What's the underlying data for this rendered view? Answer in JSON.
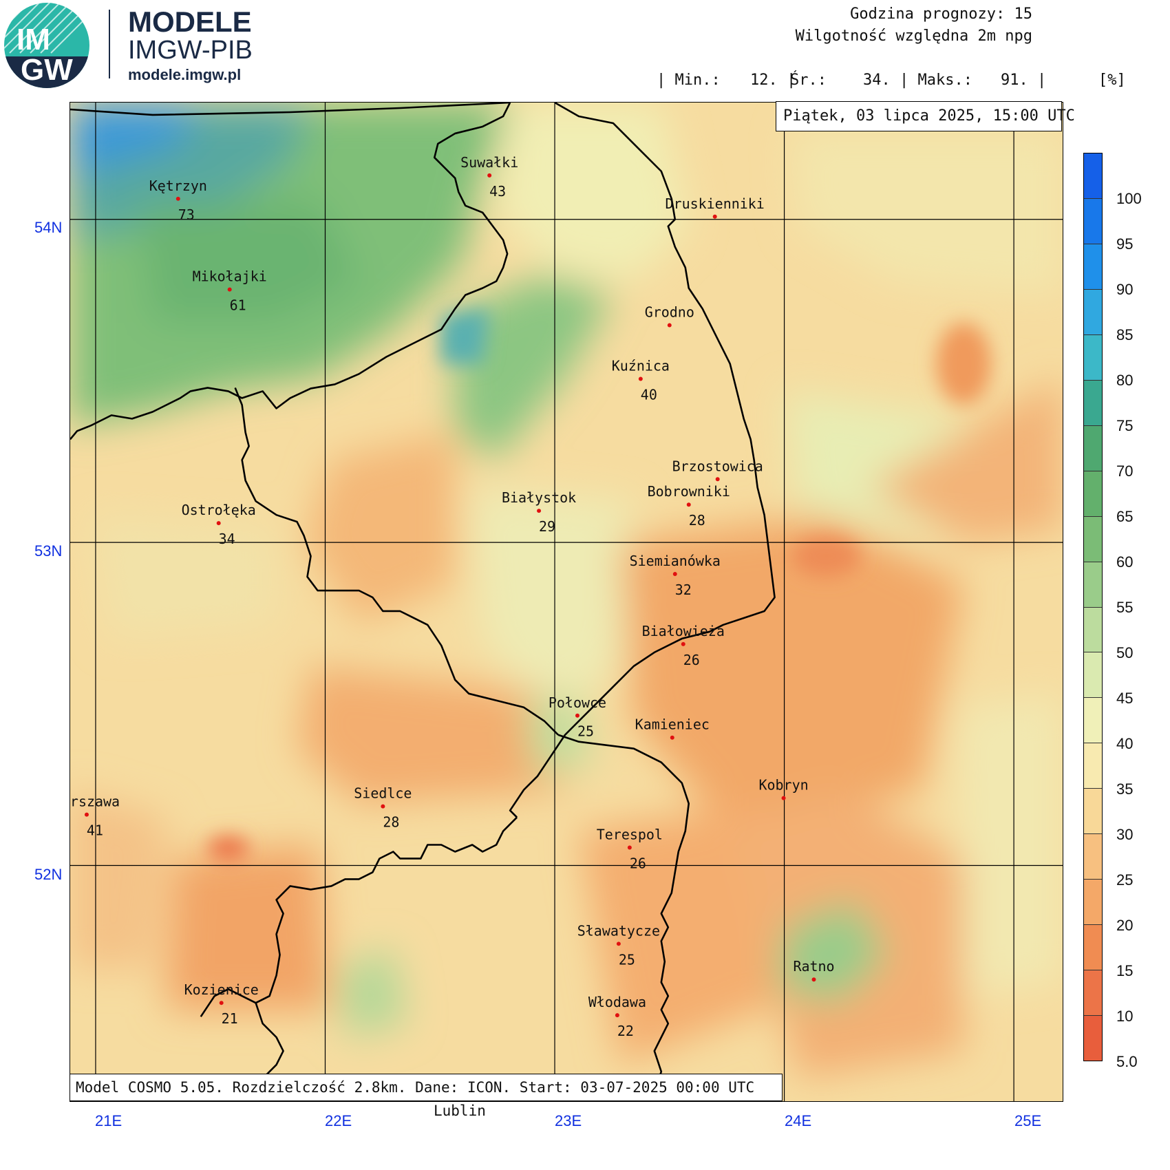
{
  "logo": {
    "badge_top": "IM",
    "badge_bottom": "GW",
    "title": "MODELE",
    "subtitle": "IMGW-PIB",
    "url": "modele.imgw.pl"
  },
  "header": {
    "forecast_hour": "Godzina prognozy: 15",
    "parameter": "Wilgotność względna 2m npg",
    "stats": {
      "min_label": "| Min.:",
      "min_value": "12. |",
      "avg_label": "Śr.:",
      "avg_value": "34. | Maks.:",
      "max_value": "91. |",
      "unit": "[%]"
    }
  },
  "date_label": "Piątek, 03 lipca 2025, 15:00 UTC",
  "model_info": "Model COSMO 5.05. Rozdzielczość 2.8km. Dane: ICON. Start: 03-07-2025 00:00 UTC",
  "grid": {
    "lat_labels": [
      "54N",
      "53N",
      "52N"
    ],
    "lon_labels": [
      "21E",
      "22E",
      "23E",
      "24E",
      "25E"
    ]
  },
  "outside_label": "Lublin",
  "cities": [
    {
      "name": "Kętrzyn",
      "value": "73"
    },
    {
      "name": "Suwałki",
      "value": "43"
    },
    {
      "name": "Druskienniki",
      "value": ""
    },
    {
      "name": "Mikołajki",
      "value": "61"
    },
    {
      "name": "Grodno",
      "value": ""
    },
    {
      "name": "Kuźnica",
      "value": "40"
    },
    {
      "name": "Brzostowica",
      "value": ""
    },
    {
      "name": "Bobrowniki",
      "value": "28"
    },
    {
      "name": "Białystok",
      "value": "29"
    },
    {
      "name": "Ostrołęka",
      "value": "34"
    },
    {
      "name": "Siemianówka",
      "value": "32"
    },
    {
      "name": "Białowieża",
      "value": "26"
    },
    {
      "name": "Połowce",
      "value": "25"
    },
    {
      "name": "Kamieniec",
      "value": ""
    },
    {
      "name": "Kobryn",
      "value": ""
    },
    {
      "name": "Warszawa",
      "value": "41"
    },
    {
      "name": "Siedlce",
      "value": "28"
    },
    {
      "name": "Terespol",
      "value": "26"
    },
    {
      "name": "Sławatycze",
      "value": "25"
    },
    {
      "name": "Ratno",
      "value": ""
    },
    {
      "name": "Kozienice",
      "value": "21"
    },
    {
      "name": "Włodawa",
      "value": "22"
    }
  ],
  "colorbar": {
    "labels": [
      "100",
      "95",
      "90",
      "85",
      "80",
      "75",
      "70",
      "65",
      "60",
      "55",
      "50",
      "45",
      "40",
      "35",
      "30",
      "25",
      "20",
      "15",
      "10",
      "5.0"
    ],
    "colors": [
      "#1560e8",
      "#1878ea",
      "#1f90ea",
      "#30a8e0",
      "#3cb8c8",
      "#3aa890",
      "#4fa870",
      "#63b06c",
      "#7bbc76",
      "#9acc8a",
      "#bcdc9e",
      "#daeab0",
      "#f0f0b8",
      "#f8eab0",
      "#f8d898",
      "#f7c080",
      "#f4a868",
      "#f08c52",
      "#ec7448",
      "#e85e3c"
    ]
  }
}
